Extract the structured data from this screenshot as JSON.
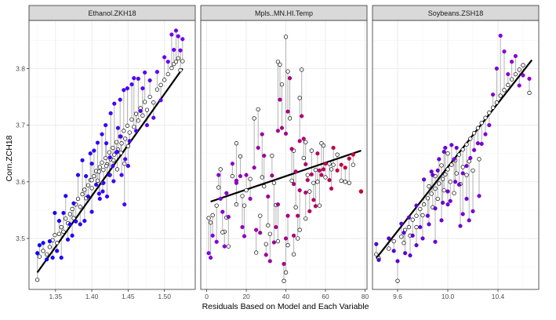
{
  "chart_data": {
    "type": "scatter",
    "ylabel": "Corn.ZCH18",
    "xlabel": "Residuals Based on Model and Each Variable",
    "ylim": [
      3.41,
      3.885
    ],
    "y_ticks": [
      3.5,
      3.6,
      3.7,
      3.8
    ],
    "grid": true,
    "colors": {
      "strip_bg": "#d9d9d9",
      "grid_major": "#ebebeb",
      "grid_minor": "#f5f5f5",
      "fit_line": "#000000",
      "segment": "#b3b3b3",
      "predicted_point": "#000000"
    },
    "panels": [
      {
        "title": "Ethanol.ZKH18",
        "xlim": [
          1.3135,
          1.5425
        ],
        "x_ticks": [
          1.35,
          1.4,
          1.45,
          1.5
        ],
        "x_tick_labels": [
          "1.35",
          "1.40",
          "1.45",
          "1.50"
        ],
        "fit": [
          [
            1.325,
            3.44
          ],
          [
            1.525,
            3.8
          ]
        ],
        "color_low": "#0000ff",
        "color_high": "#7a00ee",
        "points": [
          [
            1.325,
            3.427,
            3.474
          ],
          [
            1.328,
            3.468,
            3.488
          ],
          [
            1.333,
            3.478,
            3.492
          ],
          [
            1.338,
            3.472,
            3.463
          ],
          [
            1.342,
            3.485,
            3.495
          ],
          [
            1.346,
            3.497,
            3.466
          ],
          [
            1.349,
            3.506,
            3.545
          ],
          [
            1.352,
            3.492,
            3.478
          ],
          [
            1.355,
            3.508,
            3.531
          ],
          [
            1.358,
            3.52,
            3.466
          ],
          [
            1.361,
            3.512,
            3.545
          ],
          [
            1.364,
            3.535,
            3.575
          ],
          [
            1.367,
            3.527,
            3.498
          ],
          [
            1.37,
            3.543,
            3.525
          ],
          [
            1.373,
            3.552,
            3.505
          ],
          [
            1.375,
            3.536,
            3.562
          ],
          [
            1.378,
            3.56,
            3.53
          ],
          [
            1.381,
            3.57,
            3.612
          ],
          [
            1.384,
            3.556,
            3.525
          ],
          [
            1.387,
            3.578,
            3.638
          ],
          [
            1.39,
            3.586,
            3.531
          ],
          [
            1.392,
            3.571,
            3.61
          ],
          [
            1.395,
            3.594,
            3.574
          ],
          [
            1.398,
            3.603,
            3.65
          ],
          [
            1.4,
            3.589,
            3.547
          ],
          [
            1.403,
            3.61,
            3.655
          ],
          [
            1.406,
            3.619,
            3.595
          ],
          [
            1.408,
            3.602,
            3.669
          ],
          [
            1.411,
            3.626,
            3.57
          ],
          [
            1.414,
            3.634,
            3.684
          ],
          [
            1.416,
            3.621,
            3.598
          ],
          [
            1.419,
            3.642,
            3.7
          ],
          [
            1.421,
            3.631,
            3.574
          ],
          [
            1.424,
            3.652,
            3.612
          ],
          [
            1.426,
            3.64,
            3.721
          ],
          [
            1.429,
            3.66,
            3.628
          ],
          [
            1.431,
            3.648,
            3.738
          ],
          [
            1.434,
            3.67,
            3.652
          ],
          [
            1.436,
            3.657,
            3.695
          ],
          [
            1.439,
            3.68,
            3.745
          ],
          [
            1.441,
            3.668,
            3.612
          ],
          [
            1.444,
            3.69,
            3.762
          ],
          [
            1.446,
            3.676,
            3.64
          ],
          [
            1.449,
            3.699,
            3.765
          ],
          [
            1.452,
            3.687,
            3.672
          ],
          [
            1.455,
            3.71,
            3.772
          ],
          [
            1.458,
            3.697,
            3.783
          ],
          [
            1.461,
            3.72,
            3.69
          ],
          [
            1.464,
            3.708,
            3.782
          ],
          [
            1.467,
            3.73,
            3.725
          ],
          [
            1.47,
            3.717,
            3.765
          ],
          [
            1.473,
            3.741,
            3.793
          ],
          [
            1.476,
            3.727,
            3.7
          ],
          [
            1.48,
            3.75,
            3.779
          ],
          [
            1.485,
            3.74,
            3.713
          ],
          [
            1.49,
            3.763,
            3.794
          ],
          [
            1.495,
            3.771,
            3.744
          ],
          [
            1.5,
            3.78,
            3.82
          ],
          [
            1.505,
            3.79,
            3.812
          ],
          [
            1.51,
            3.801,
            3.86
          ],
          [
            1.513,
            3.808,
            3.833
          ],
          [
            1.516,
            3.812,
            3.867
          ],
          [
            1.519,
            3.818,
            3.857
          ],
          [
            1.522,
            3.797,
            3.832
          ],
          [
            1.525,
            3.813,
            3.852
          ],
          [
            1.4,
            3.603,
            3.632
          ],
          [
            1.41,
            3.618,
            3.579
          ],
          [
            1.42,
            3.628,
            3.668
          ],
          [
            1.43,
            3.638,
            3.601
          ],
          [
            1.44,
            3.651,
            3.68
          ],
          [
            1.45,
            3.663,
            3.628
          ],
          [
            1.415,
            3.598,
            3.583
          ],
          [
            1.425,
            3.612,
            3.643
          ],
          [
            1.435,
            3.622,
            3.653
          ],
          [
            1.445,
            3.632,
            3.56
          ]
        ]
      },
      {
        "title": "Mpls..MN.HI.Temp",
        "xlim": [
          -3,
          81
        ],
        "x_ticks": [
          0,
          20,
          40,
          60,
          80
        ],
        "x_tick_labels": [
          "0",
          "20",
          "40",
          "60",
          "80"
        ],
        "fit": [
          [
            2,
            3.565
          ],
          [
            78,
            3.655
          ]
        ],
        "color_low": "#7a00ee",
        "color_high": "#d10022",
        "points": [
          [
            1,
            3.536,
            3.474
          ],
          [
            2,
            3.528,
            3.466
          ],
          [
            3,
            3.541,
            3.505
          ],
          [
            5,
            3.558,
            3.494
          ],
          [
            7,
            3.622,
            3.57
          ],
          [
            9,
            3.512,
            3.486
          ],
          [
            11,
            3.486,
            3.538
          ],
          [
            13,
            3.61,
            3.632
          ],
          [
            15,
            3.668,
            3.602
          ],
          [
            17,
            3.645,
            3.61
          ],
          [
            19,
            3.558,
            3.504
          ],
          [
            20,
            3.585,
            3.612
          ],
          [
            22,
            3.605,
            3.57
          ],
          [
            24,
            3.712,
            3.625
          ],
          [
            26,
            3.728,
            3.66
          ],
          [
            27,
            3.54,
            3.51
          ],
          [
            28,
            3.608,
            3.684
          ],
          [
            30,
            3.49,
            3.471
          ],
          [
            31,
            3.523,
            3.574
          ],
          [
            32,
            3.508,
            3.46
          ],
          [
            33,
            3.646,
            3.611
          ],
          [
            34,
            3.598,
            3.493
          ],
          [
            35,
            3.559,
            3.52
          ],
          [
            36,
            3.812,
            3.69
          ],
          [
            37,
            3.807,
            3.745
          ],
          [
            38,
            3.772,
            3.695
          ],
          [
            39,
            3.425,
            3.455
          ],
          [
            40,
            3.44,
            3.5
          ],
          [
            40,
            3.856,
            3.685
          ],
          [
            41,
            3.795,
            3.724
          ],
          [
            42,
            3.712,
            3.783
          ],
          [
            43,
            3.602,
            3.658
          ],
          [
            44,
            3.655,
            3.596
          ],
          [
            45,
            3.555,
            3.618
          ],
          [
            46,
            3.5,
            3.54
          ],
          [
            47,
            3.748,
            3.672
          ],
          [
            48,
            3.798,
            3.716
          ],
          [
            49,
            3.642,
            3.676
          ],
          [
            50,
            3.535,
            3.581
          ],
          [
            51,
            3.612,
            3.603
          ],
          [
            52,
            3.583,
            3.548
          ],
          [
            53,
            3.655,
            3.613
          ],
          [
            55,
            3.621,
            3.557
          ],
          [
            56,
            3.6,
            3.65
          ],
          [
            57,
            3.558,
            3.62
          ],
          [
            58,
            3.668,
            3.612
          ],
          [
            60,
            3.608,
            3.632
          ],
          [
            62,
            3.632,
            3.603
          ],
          [
            64,
            3.63,
            3.66
          ],
          [
            66,
            3.648,
            3.62
          ],
          [
            68,
            3.602,
            3.63
          ],
          [
            70,
            3.6,
            3.625
          ],
          [
            72,
            3.598,
            3.641
          ],
          [
            74,
            3.63,
            3.648
          ],
          [
            78,
            3.583,
            3.583
          ],
          [
            10,
            3.537,
            3.58
          ],
          [
            18,
            3.575,
            3.52
          ],
          [
            25,
            3.475,
            3.515
          ],
          [
            29,
            3.592,
            3.646
          ],
          [
            36,
            3.495,
            3.56
          ],
          [
            41,
            3.488,
            3.54
          ],
          [
            44,
            3.472,
            3.505
          ],
          [
            47,
            3.515,
            3.585
          ],
          [
            50,
            3.67,
            3.631
          ],
          [
            54,
            3.598,
            3.568
          ],
          [
            59,
            3.664,
            3.622
          ],
          [
            63,
            3.622,
            3.588
          ],
          [
            8,
            3.511,
            3.547
          ],
          [
            6,
            3.59,
            3.612
          ],
          [
            15,
            3.56,
            3.598
          ]
        ]
      },
      {
        "title": "Soybeans.ZSH18",
        "xlim": [
          9.4,
          10.725
        ],
        "x_ticks": [
          9.6,
          10.0,
          10.4
        ],
        "x_tick_labels": [
          "9.6",
          "10.0",
          "10.4"
        ],
        "fit": [
          [
            9.43,
            3.465
          ],
          [
            10.67,
            3.815
          ]
        ],
        "color_low": "#4b00d1",
        "color_high": "#9400d3",
        "points": [
          [
            9.43,
            3.472,
            3.49
          ],
          [
            9.45,
            3.465,
            3.462
          ],
          [
            9.53,
            3.482,
            3.5
          ],
          [
            9.57,
            3.495,
            3.478
          ],
          [
            9.6,
            3.425,
            3.46
          ],
          [
            9.63,
            3.503,
            3.526
          ],
          [
            9.66,
            3.515,
            3.474
          ],
          [
            9.69,
            3.52,
            3.537
          ],
          [
            9.72,
            3.533,
            3.505
          ],
          [
            9.75,
            3.54,
            3.558
          ],
          [
            9.78,
            3.552,
            3.52
          ],
          [
            9.81,
            3.56,
            3.604
          ],
          [
            9.84,
            3.571,
            3.54
          ],
          [
            9.87,
            3.579,
            3.618
          ],
          [
            9.9,
            3.588,
            3.553
          ],
          [
            9.93,
            3.597,
            3.64
          ],
          [
            9.96,
            3.605,
            3.563
          ],
          [
            9.98,
            3.613,
            3.66
          ],
          [
            10.0,
            3.622,
            3.583
          ],
          [
            10.03,
            3.63,
            3.665
          ],
          [
            10.06,
            3.638,
            3.6
          ],
          [
            10.09,
            3.648,
            3.595
          ],
          [
            10.12,
            3.657,
            3.615
          ],
          [
            10.15,
            3.666,
            3.628
          ],
          [
            10.18,
            3.676,
            3.642
          ],
          [
            10.21,
            3.686,
            3.656
          ],
          [
            10.24,
            3.695,
            3.668
          ],
          [
            10.27,
            3.704,
            3.667
          ],
          [
            10.3,
            3.713,
            3.684
          ],
          [
            10.33,
            3.722,
            3.7
          ],
          [
            10.36,
            3.731,
            3.754
          ],
          [
            10.39,
            3.74,
            3.8
          ],
          [
            10.42,
            3.752,
            3.858
          ],
          [
            10.45,
            3.762,
            3.83
          ],
          [
            10.48,
            3.771,
            3.79
          ],
          [
            10.51,
            3.781,
            3.812
          ],
          [
            10.54,
            3.79,
            3.822
          ],
          [
            10.57,
            3.798,
            3.77
          ],
          [
            10.6,
            3.806,
            3.788
          ],
          [
            10.65,
            3.757,
            3.782
          ],
          [
            9.8,
            3.541,
            3.5
          ],
          [
            9.85,
            3.592,
            3.525
          ],
          [
            9.9,
            3.61,
            3.494
          ],
          [
            9.95,
            3.629,
            3.532
          ],
          [
            10.0,
            3.65,
            3.56
          ],
          [
            10.05,
            3.58,
            3.64
          ],
          [
            10.1,
            3.596,
            3.522
          ],
          [
            10.15,
            3.612,
            3.57
          ],
          [
            10.2,
            3.62,
            3.548
          ],
          [
            10.25,
            3.64,
            3.575
          ],
          [
            9.88,
            3.555,
            3.612
          ],
          [
            9.92,
            3.57,
            3.62
          ],
          [
            9.97,
            3.585,
            3.653
          ],
          [
            10.02,
            3.6,
            3.566
          ],
          [
            10.07,
            3.615,
            3.66
          ],
          [
            10.12,
            3.626,
            3.543
          ],
          [
            10.17,
            3.636,
            3.532
          ],
          [
            9.75,
            3.52,
            3.488
          ],
          [
            9.7,
            3.505,
            3.47
          ],
          [
            9.65,
            3.492,
            3.51
          ]
        ]
      }
    ]
  }
}
